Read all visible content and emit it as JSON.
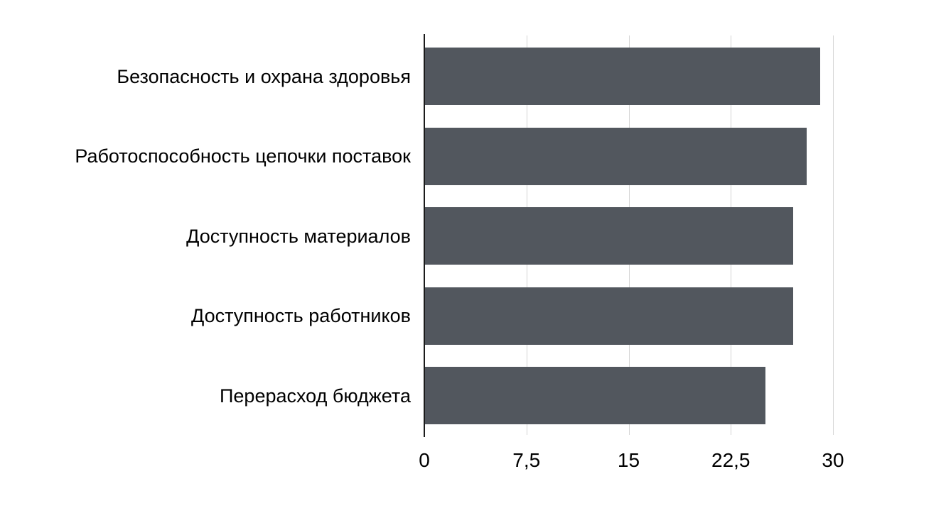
{
  "chart_data": {
    "type": "bar",
    "orientation": "horizontal",
    "title": "",
    "xlabel": "",
    "ylabel": "",
    "categories": [
      "Безопасность и охрана здоровья",
      "Работоспособность цепочки поставок",
      "Доступность материалов",
      "Доступность работников",
      "Перерасход бюджета"
    ],
    "values": [
      29,
      28,
      27,
      27,
      25
    ],
    "xlim": [
      0,
      30
    ],
    "x_ticks": [
      0,
      7.5,
      15,
      22.5,
      30
    ],
    "x_tick_labels": [
      "0",
      "7,5",
      "15",
      "22,5",
      "30"
    ],
    "grid": true,
    "legend": false,
    "colors": {
      "bar": "#52575E",
      "gridline": "#D4D4D4",
      "axis": "#1B1B1B",
      "text": "#000000",
      "background": "#FFFFFF"
    }
  }
}
